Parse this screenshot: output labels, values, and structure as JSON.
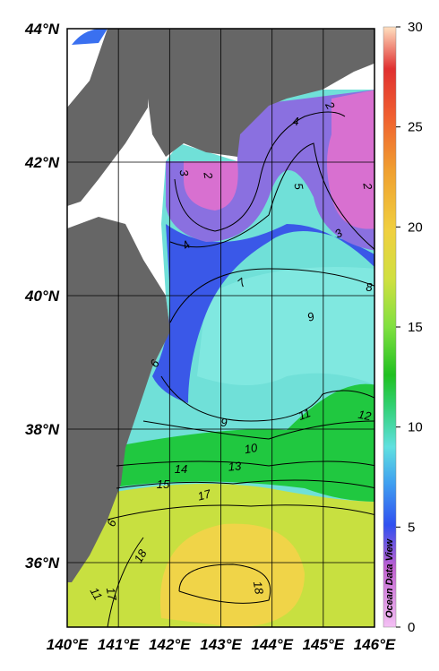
{
  "map": {
    "lat_labels": [
      {
        "value": 44,
        "label": "44°N"
      },
      {
        "value": 42,
        "label": "42°N"
      },
      {
        "value": 40,
        "label": "40°N"
      },
      {
        "value": 38,
        "label": "38°N"
      },
      {
        "value": 36,
        "label": "36°N"
      }
    ],
    "lon_labels": [
      {
        "value": 140,
        "label": "140°E"
      },
      {
        "value": 141,
        "label": "141°E"
      },
      {
        "value": 142,
        "label": "142°E"
      },
      {
        "value": 143,
        "label": "143°E"
      },
      {
        "value": 144,
        "label": "144°E"
      },
      {
        "value": 145,
        "label": "145°E"
      },
      {
        "value": 146,
        "label": "146°E"
      }
    ],
    "colorbar": {
      "lim": [
        0,
        30
      ],
      "ticks": [
        0,
        5,
        10,
        15,
        20,
        25,
        30
      ]
    },
    "contour_labels": [
      2,
      4,
      2,
      3,
      5,
      2,
      3,
      4,
      7,
      8,
      9,
      6,
      9,
      11,
      12,
      10,
      13,
      14,
      15,
      17,
      6,
      18,
      18,
      11,
      17
    ],
    "credit": "Ocean Data View"
  }
}
